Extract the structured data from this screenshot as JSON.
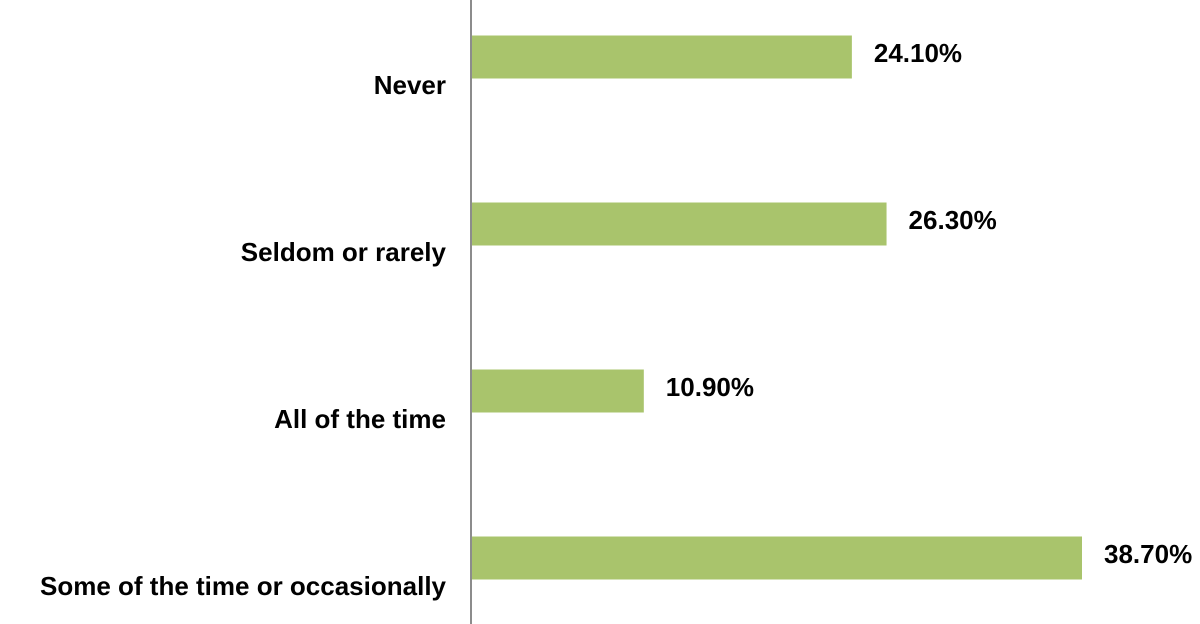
{
  "chart_data": {
    "type": "hbar",
    "categories": [
      "Never",
      "Seldom or rarely",
      "All of the time",
      "Some of the time or occasionally"
    ],
    "values": [
      24.1,
      26.3,
      10.9,
      38.7
    ],
    "value_labels": [
      "24.10%",
      "26.30%",
      "10.90%",
      "38.70%"
    ],
    "color": "#a9c46c"
  }
}
